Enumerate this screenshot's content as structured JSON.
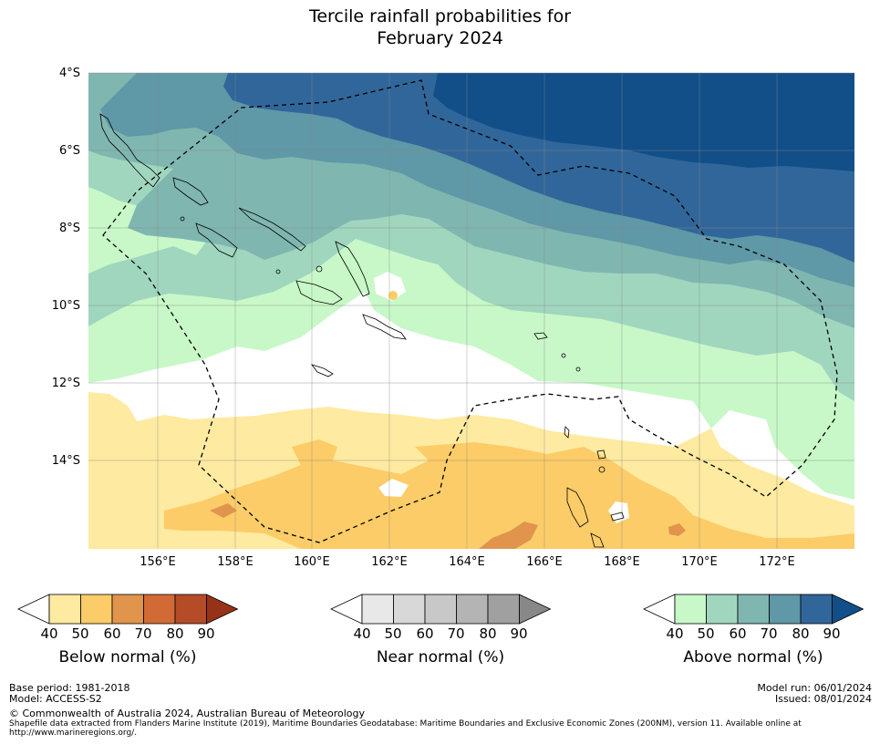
{
  "title": {
    "line1": "Tercile rainfall probabilities for",
    "line2": "February 2024"
  },
  "map": {
    "lat_labels": [
      "4°S",
      "6°S",
      "8°S",
      "10°S",
      "12°S",
      "14°S"
    ],
    "lon_labels": [
      "156°E",
      "158°E",
      "160°E",
      "162°E",
      "164°E",
      "166°E",
      "168°E",
      "170°E",
      "172°E"
    ],
    "colors": {
      "above_40": "#c8f8c8",
      "above_50": "#a0d6be",
      "above_60": "#80b6b0",
      "above_70": "#5f98a6",
      "above_80": "#31669a",
      "above_90": "#124f88",
      "below_40": "#feeaa0",
      "below_50": "#fccc68",
      "below_60": "#e0944c",
      "near_white": "#ffffff"
    }
  },
  "colorbars": {
    "below": {
      "title": "Below normal (%)",
      "ticks": [
        "40",
        "50",
        "60",
        "70",
        "80",
        "90"
      ],
      "colors": [
        "#feeaa0",
        "#fccc68",
        "#e0944c",
        "#d26a35",
        "#b44c28",
        "#963218"
      ]
    },
    "near": {
      "title": "Near normal (%)",
      "ticks": [
        "40",
        "50",
        "60",
        "70",
        "80",
        "90"
      ],
      "colors": [
        "#e8e8e8",
        "#d8d8d8",
        "#c8c8c8",
        "#b4b4b4",
        "#a0a0a0",
        "#888888"
      ]
    },
    "above": {
      "title": "Above normal (%)",
      "ticks": [
        "40",
        "50",
        "60",
        "70",
        "80",
        "90"
      ],
      "colors": [
        "#c8f8c8",
        "#a0d6be",
        "#80b6b0",
        "#5f98a6",
        "#31669a",
        "#124f88"
      ]
    }
  },
  "footer": {
    "base_period": "Base period: 1981-2018",
    "model": "Model: ACCESS-S2",
    "model_run": "Model run: 06/01/2024",
    "issued": "Issued: 08/01/2024",
    "copyright": "© Commonwealth of Australia 2024, Australian Bureau of Meteorology",
    "shapefile_line1": "Shapefile data extracted from Flanders Marine Institute (2019), Maritime Boundaries Geodatabase: Maritime Boundaries and Exclusive Economic Zones (200NM), version 11. Available online at",
    "shapefile_line2": "http://www.marineregions.org/."
  }
}
